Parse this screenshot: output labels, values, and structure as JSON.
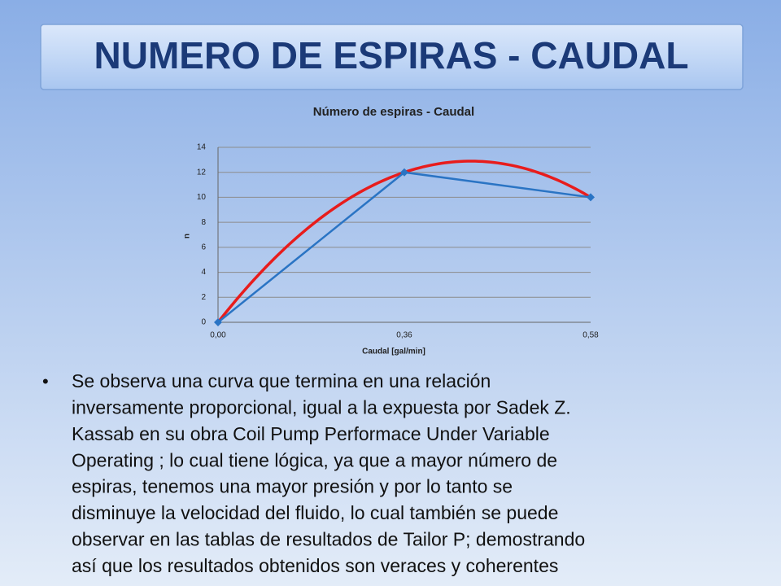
{
  "slide_title": "NUMERO DE ESPIRAS - CAUDAL",
  "chart_data": {
    "type": "line",
    "title": "Número de espiras - Caudal",
    "x_label": "Caudal  [gal/min]",
    "y_label": "n",
    "categories": [
      "0,00",
      "0,36",
      "0,58"
    ],
    "series": [
      {
        "values": [
          0,
          12,
          10
        ],
        "color": "#2a74c4"
      }
    ],
    "trendline": {
      "type": "polynomial",
      "order": 2,
      "color": "#e81c1c"
    },
    "ylim": [
      0,
      14
    ],
    "yticks": [
      0,
      2,
      4,
      6,
      8,
      10,
      12,
      14
    ],
    "grid": true
  },
  "bullet_lines": [
    "Se observa una curva que termina en una relación",
    "inversamente proporcional, igual a la expuesta por Sadek Z.",
    "Kassab en su obra Coil Pump Performace Under Variable",
    "Operating ; lo cual tiene lógica, ya que a mayor número de",
    "espiras, tenemos una mayor presión y por lo tanto se",
    "disminuye la velocidad del fluido, lo cual  también se puede",
    "observar en las tablas de resultados de Tailor P; demostrando",
    "así que los resultados obtenidos son veraces y coherentes"
  ]
}
